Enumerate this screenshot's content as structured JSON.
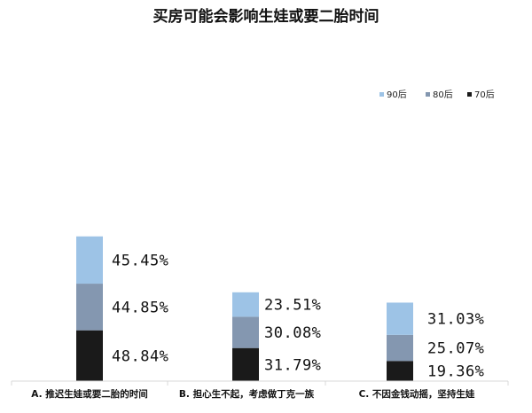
{
  "chart_data": {
    "type": "bar",
    "stacked": true,
    "title": "买房可能会影响生娃或要二胎时间",
    "categories": [
      "A. 推迟生娃或要二胎的时间",
      "B. 担心生不起，考虑做丁克一族",
      "C. 不因金钱动摇，坚持生娃"
    ],
    "series": [
      {
        "name": "70后",
        "color": "#1a1a1a",
        "values": [
          48.84,
          31.79,
          19.36
        ],
        "labels": [
          "48.84%",
          "31.79%",
          "19.36%"
        ]
      },
      {
        "name": "80后",
        "color": "#8497b0",
        "values": [
          44.85,
          30.08,
          25.07
        ],
        "labels": [
          "44.85%",
          "30.08%",
          "25.07%"
        ]
      },
      {
        "name": "90后",
        "color": "#9dc3e6",
        "values": [
          45.45,
          23.51,
          31.03
        ],
        "labels": [
          "45.45%",
          "23.51%",
          "31.03%"
        ]
      }
    ],
    "legend": {
      "position": "top-right",
      "order": [
        "90后",
        "80后",
        "70后"
      ]
    },
    "grid": false
  }
}
